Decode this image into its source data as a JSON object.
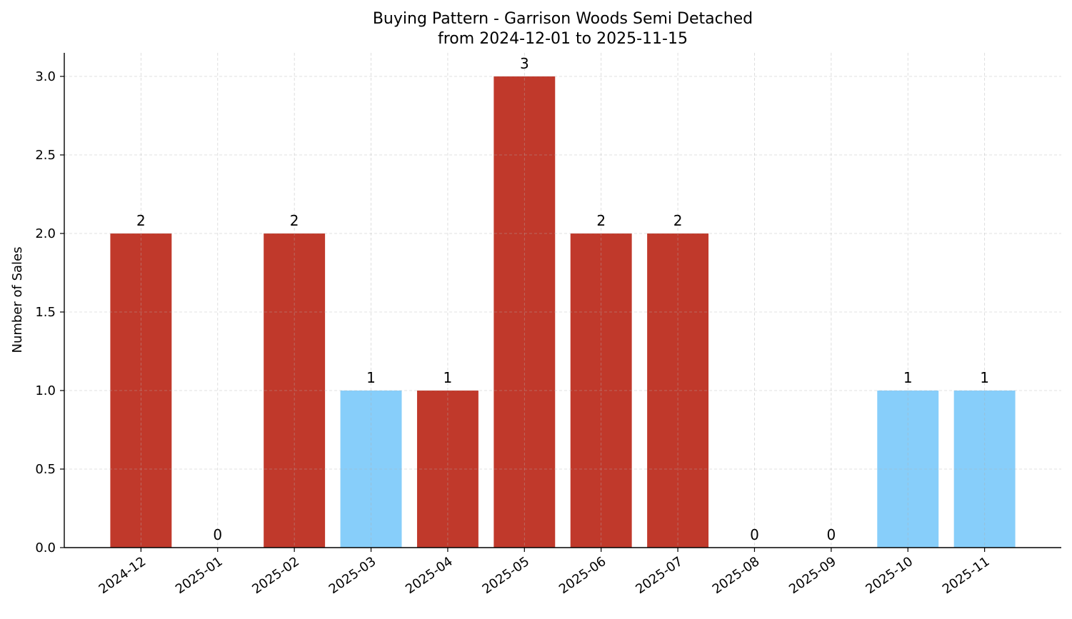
{
  "chart_data": {
    "type": "bar",
    "title": "Buying Pattern - Garrison Woods Semi Detached",
    "subtitle": "from 2024-12-01 to 2025-11-15",
    "xlabel": "",
    "ylabel": "Number of Sales",
    "categories": [
      "2024-12",
      "2025-01",
      "2025-02",
      "2025-03",
      "2025-04",
      "2025-05",
      "2025-06",
      "2025-07",
      "2025-08",
      "2025-09",
      "2025-10",
      "2025-11"
    ],
    "values": [
      2,
      0,
      2,
      1,
      1,
      3,
      2,
      2,
      0,
      0,
      1,
      1
    ],
    "bar_colors": [
      "#c0392b",
      "#c0392b",
      "#c0392b",
      "#87cefa",
      "#c0392b",
      "#c0392b",
      "#c0392b",
      "#c0392b",
      "#c0392b",
      "#c0392b",
      "#87cefa",
      "#87cefa"
    ],
    "ylim": [
      0,
      3.15
    ],
    "yticks": [
      "0.0",
      "0.5",
      "1.0",
      "1.5",
      "2.0",
      "2.5",
      "3.0"
    ],
    "grid": true
  }
}
